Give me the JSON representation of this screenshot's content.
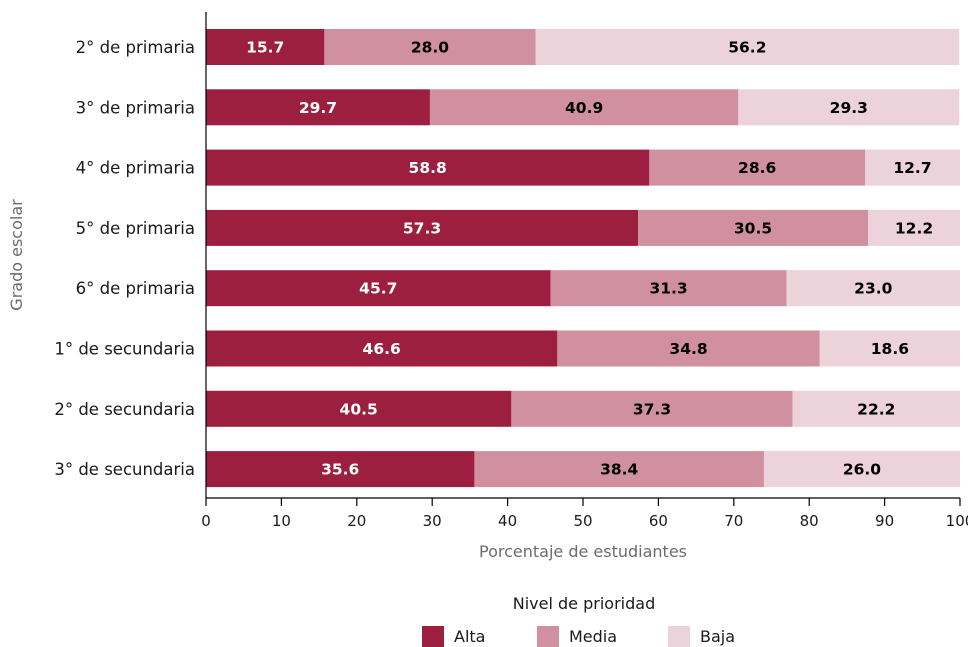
{
  "chart_data": {
    "type": "bar",
    "orientation": "horizontal",
    "stacked": true,
    "categories": [
      "2° de primaria",
      "3° de primaria",
      "4° de primaria",
      "5° de primaria",
      "6° de primaria",
      "1° de secundaria",
      "2° de secundaria",
      "3° de secundaria"
    ],
    "series": [
      {
        "name": "Alta",
        "color": "#9c1f3f",
        "label_color": "#ffffff",
        "values": [
          15.7,
          29.7,
          58.8,
          57.3,
          45.7,
          46.6,
          40.5,
          35.6
        ]
      },
      {
        "name": "Media",
        "color": "#d0909f",
        "label_color": "#000000",
        "values": [
          28.0,
          40.9,
          28.6,
          30.5,
          31.3,
          34.8,
          37.3,
          38.4
        ]
      },
      {
        "name": "Baja",
        "color": "#ecd2da",
        "label_color": "#000000",
        "values": [
          56.2,
          29.3,
          12.7,
          12.2,
          23.0,
          18.6,
          22.2,
          26.0
        ]
      }
    ],
    "xlabel": "Porcentaje de estudiantes",
    "ylabel": "Grado escolar",
    "xlim": [
      0,
      100
    ],
    "xticks": [
      0,
      10,
      20,
      30,
      40,
      50,
      60,
      70,
      80,
      90,
      100
    ],
    "grid": false,
    "legend": {
      "title": "Nivel de prioridad",
      "position": "bottom"
    }
  }
}
